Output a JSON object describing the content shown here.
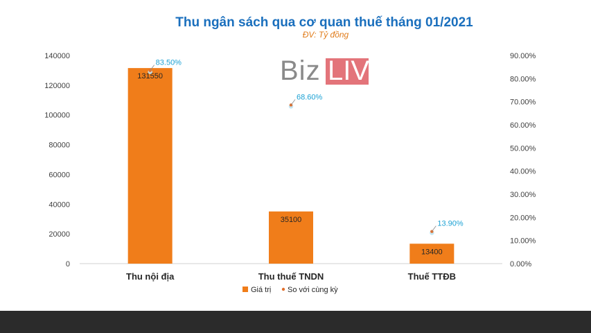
{
  "chart_data": {
    "type": "bar",
    "title": "Thu ngân sách qua cơ quan thuế tháng 01/2021",
    "subtitle": "ĐV: Tỷ đồng",
    "categories": [
      "Thu nội địa",
      "Thu thuế TNDN",
      "Thuế TTĐB"
    ],
    "series": [
      {
        "name": "Giá trị",
        "type": "bar",
        "axis": "left",
        "values": [
          131550,
          35100,
          13400
        ],
        "labels": [
          "131550",
          "35100",
          "13400"
        ],
        "color": "#f07d1a"
      },
      {
        "name": "So với cùng kỳ",
        "type": "scatter",
        "axis": "right",
        "values": [
          83.5,
          68.6,
          13.9
        ],
        "labels": [
          "83.50%",
          "68.60%",
          "13.90%"
        ],
        "color": "#e1702e",
        "label_color": "#1ba1d4"
      }
    ],
    "ylim": [
      0,
      140000
    ],
    "yticks": [
      "0",
      "20000",
      "40000",
      "60000",
      "80000",
      "100000",
      "120000",
      "140000"
    ],
    "y2lim": [
      0,
      90
    ],
    "y2ticks": [
      "0.00%",
      "10.00%",
      "20.00%",
      "30.00%",
      "40.00%",
      "50.00%",
      "60.00%",
      "70.00%",
      "80.00%",
      "90.00%"
    ],
    "xlabel": "",
    "ylabel": "",
    "grid": false,
    "legend_position": "bottom"
  },
  "watermark": {
    "biz": "Biz",
    "live": "LIVE",
    "live_bg": "#e3747a"
  },
  "colors": {
    "title": "#1a6fbd",
    "subtitle": "#e07b1a",
    "footer": "#2b2b2b"
  }
}
